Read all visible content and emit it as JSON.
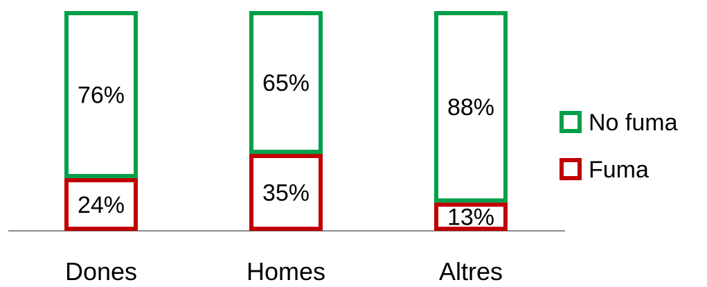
{
  "chart_data": {
    "type": "bar",
    "stacked": true,
    "stack_mode": "percent",
    "categories": [
      "Dones",
      "Homes",
      "Altres"
    ],
    "series": [
      {
        "name": "Fuma",
        "values": [
          24,
          35,
          13
        ],
        "labels": [
          "24%",
          "35%",
          "13%"
        ],
        "color": "#c00000"
      },
      {
        "name": "No fuma",
        "values": [
          76,
          65,
          88
        ],
        "labels": [
          "76%",
          "65%",
          "88%"
        ],
        "color": "#00a04a"
      }
    ],
    "ylim": [
      0,
      100
    ],
    "grid": false,
    "legend_position": "right",
    "bar_fill": "#ffffff"
  }
}
